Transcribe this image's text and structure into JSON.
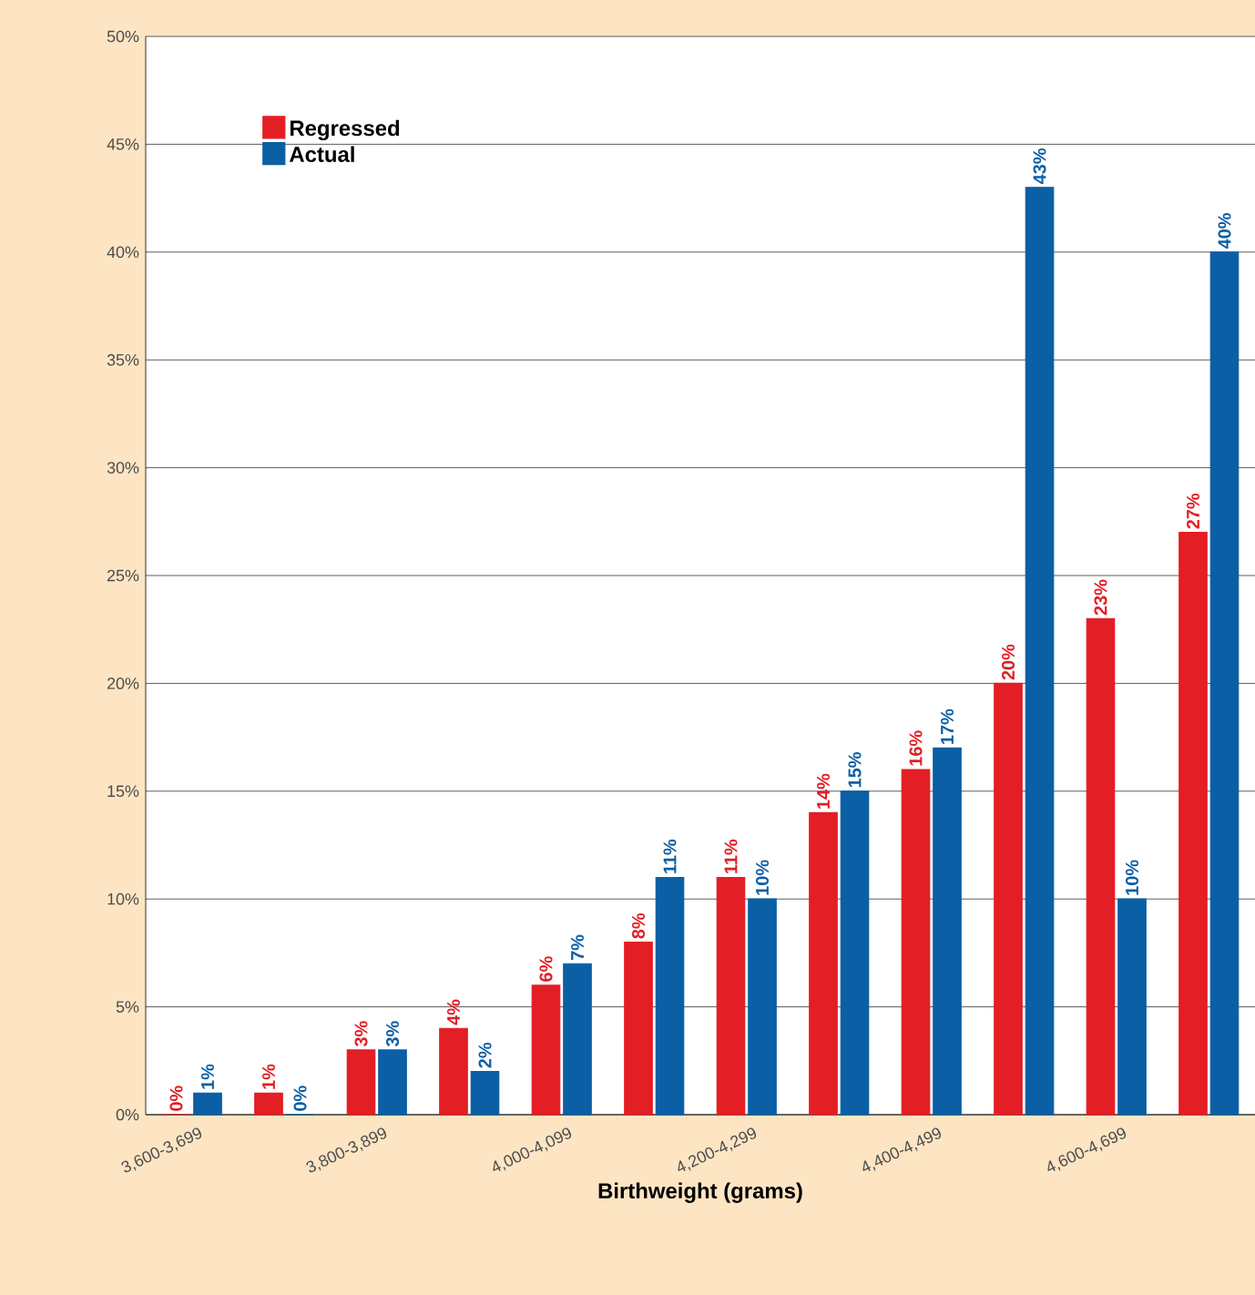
{
  "chart_data": {
    "type": "bar",
    "xlabel": "Birthweight (grams)",
    "categories": [
      "3,600-3,699",
      null,
      "3,800-3,899",
      null,
      "4,000-4,099",
      null,
      "4,200-4,299",
      null,
      "4,400-4,499",
      null,
      "4,600-4,699",
      null
    ],
    "series": [
      {
        "name": "Regressed",
        "color": "#e31e24",
        "values": [
          0,
          1,
          3,
          4,
          6,
          8,
          11,
          14,
          16,
          20,
          23,
          27
        ],
        "value_labels": [
          "0%",
          "1%",
          "3%",
          "4%",
          "6%",
          "8%",
          "11%",
          "14%",
          "16%",
          "20%",
          "23%",
          "27%"
        ]
      },
      {
        "name": "Actual",
        "color": "#0b5fa5",
        "values": [
          1,
          0,
          3,
          2,
          7,
          11,
          10,
          15,
          17,
          43,
          10,
          40
        ],
        "value_labels": [
          "1%",
          "0%",
          "3%",
          "2%",
          "7%",
          "11%",
          "10%",
          "15%",
          "17%",
          "43%",
          "10%",
          "40%"
        ]
      }
    ],
    "ylim": [
      0,
      50
    ],
    "yticks": [
      {
        "value": 0,
        "label": "0%"
      },
      {
        "value": 5,
        "label": "5%"
      },
      {
        "value": 10,
        "label": "10%"
      },
      {
        "value": 15,
        "label": "15%"
      },
      {
        "value": 20,
        "label": "20%"
      },
      {
        "value": 25,
        "label": "25%"
      },
      {
        "value": 30,
        "label": "30%"
      },
      {
        "value": 35,
        "label": "35%"
      },
      {
        "value": 40,
        "label": "40%"
      },
      {
        "value": 45,
        "label": "45%"
      },
      {
        "value": 50,
        "label": "50%"
      }
    ],
    "grid": "y",
    "legend": "top left"
  }
}
